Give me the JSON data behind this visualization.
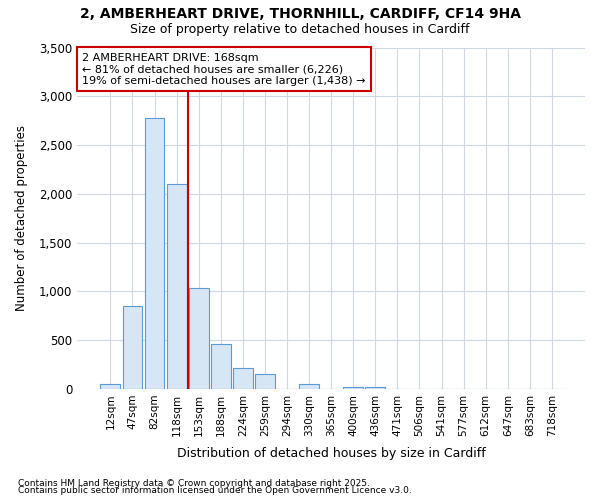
{
  "title_line1": "2, AMBERHEART DRIVE, THORNHILL, CARDIFF, CF14 9HA",
  "title_line2": "Size of property relative to detached houses in Cardiff",
  "xlabel": "Distribution of detached houses by size in Cardiff",
  "ylabel": "Number of detached properties",
  "categories": [
    "12sqm",
    "47sqm",
    "82sqm",
    "118sqm",
    "153sqm",
    "188sqm",
    "224sqm",
    "259sqm",
    "294sqm",
    "330sqm",
    "365sqm",
    "400sqm",
    "436sqm",
    "471sqm",
    "506sqm",
    "541sqm",
    "577sqm",
    "612sqm",
    "647sqm",
    "683sqm",
    "718sqm"
  ],
  "values": [
    55,
    850,
    2780,
    2100,
    1030,
    460,
    210,
    150,
    0,
    55,
    0,
    20,
    15,
    0,
    0,
    0,
    0,
    0,
    0,
    0,
    0
  ],
  "bar_color": "#d6e6f5",
  "bar_edge_color": "#5b9bd5",
  "background_color": "#ffffff",
  "plot_bg_color": "#ffffff",
  "grid_color": "#d0d8e4",
  "vline_x": 3.5,
  "vline_color": "#cc0000",
  "annotation_text_line1": "2 AMBERHEART DRIVE: 168sqm",
  "annotation_text_line2": "← 81% of detached houses are smaller (6,226)",
  "annotation_text_line3": "19% of semi-detached houses are larger (1,438) →",
  "annotation_box_color": "#cc0000",
  "ylim": [
    0,
    3500
  ],
  "yticks": [
    0,
    500,
    1000,
    1500,
    2000,
    2500,
    3000,
    3500
  ],
  "footnote_line1": "Contains HM Land Registry data © Crown copyright and database right 2025.",
  "footnote_line2": "Contains public sector information licensed under the Open Government Licence v3.0."
}
